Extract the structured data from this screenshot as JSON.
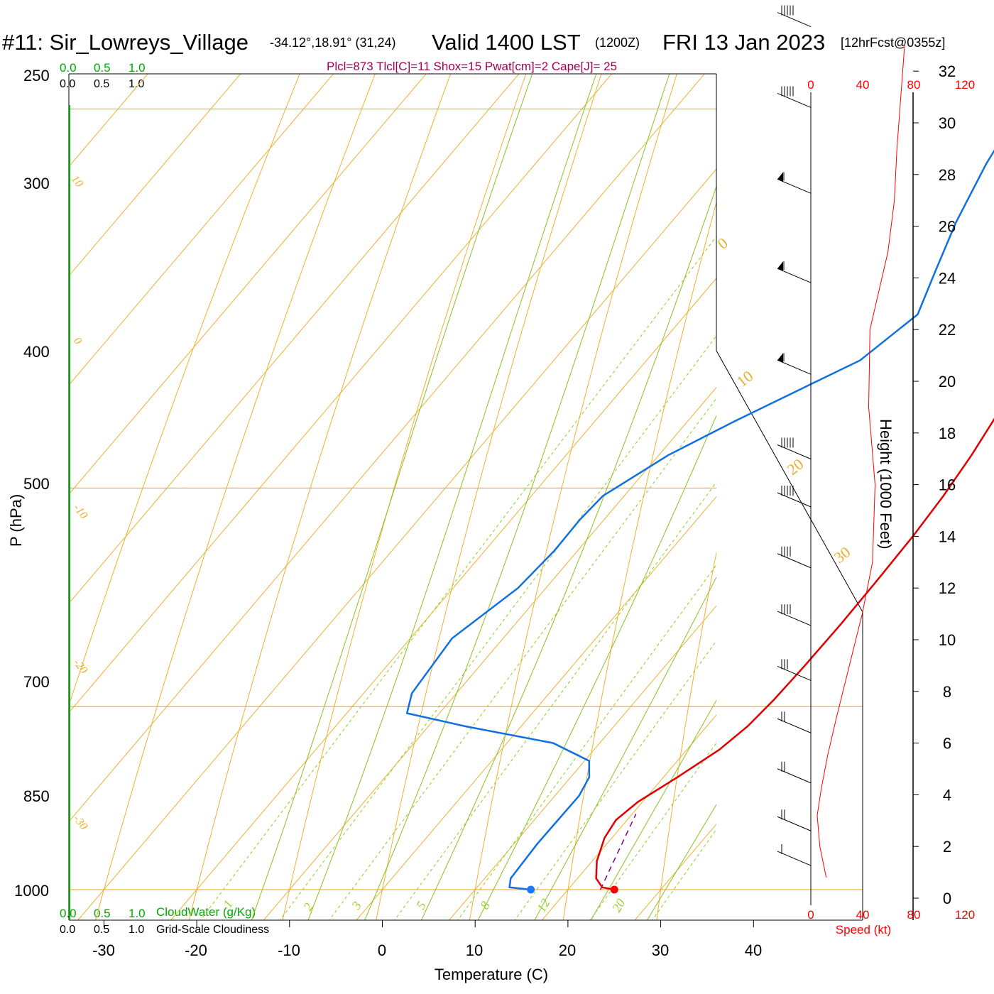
{
  "header": {
    "station": "#11: Sir_Lowreys_Village",
    "coords": "-34.12°,18.91° (31,24)",
    "valid": "Valid 1400 LST",
    "utc": "(1200Z)",
    "date": "FRI 13 Jan 2023",
    "forecast": "[12hrFcst@0355z]"
  },
  "indices": "Plcl=873 Tlcl[C]=11 Shox=15 Pwat[cm]=2 Cape[J]= 25",
  "colors": {
    "temperature": "#e00000",
    "dewpoint": "#1070e0",
    "isobar": "#f0a000",
    "isotherm": "#f0b030",
    "mixing_ratio": "#90cc20",
    "moist_adiabat": "#8ac020",
    "cloud_axis": "#00aa00",
    "speed": "#ff0000",
    "parcel": "#800080"
  },
  "chart_data": {
    "type": "line",
    "xlabel": "Temperature (C)",
    "ylabel": "P (hPa)",
    "x_ticks": [
      "-30",
      "-20",
      "-10",
      "0",
      "10",
      "20",
      "30",
      "40"
    ],
    "y_ticks": [
      "250",
      "300",
      "400",
      "500",
      "700",
      "850",
      "1000"
    ],
    "height_label": "Height (1000 Feet)",
    "height_ticks": [
      "0",
      "2",
      "4",
      "6",
      "8",
      "10",
      "12",
      "14",
      "16",
      "18",
      "20",
      "22",
      "24",
      "26",
      "28",
      "30",
      "32"
    ],
    "speed_ticks": [
      "0",
      "40",
      "80",
      "120"
    ],
    "speed_label": "Speed (kt)",
    "cloud_water_label": "CloudWater (g/Kg)",
    "cloudiness_label": "Grid-Scale Cloudiness",
    "cloud_ticks": [
      "0.0",
      "0.5",
      "1.0"
    ],
    "dry_adiabat_labels": [
      "10",
      "0",
      "-10",
      "-20",
      "-30"
    ],
    "isotherm_labels": [
      "0",
      "10",
      "20",
      "30"
    ],
    "mixing_ratio_labels": [
      "1",
      "2",
      "3",
      "5",
      "8",
      "12",
      "20"
    ],
    "series": [
      {
        "name": "temperature",
        "points": [
          [
            25.0,
            1000
          ],
          [
            23.5,
            998
          ],
          [
            22,
            990
          ],
          [
            20.5,
            975
          ],
          [
            19.2,
            955
          ],
          [
            18.8,
            940
          ],
          [
            19.5,
            925
          ],
          [
            21.5,
            905
          ],
          [
            23.5,
            883
          ],
          [
            24.4,
            865
          ],
          [
            24.8,
            845
          ],
          [
            25,
            820
          ],
          [
            25.1,
            790
          ],
          [
            25,
            760
          ],
          [
            24.8,
            730
          ],
          [
            24.4,
            705
          ],
          [
            23.7,
            680
          ],
          [
            22.5,
            650
          ],
          [
            20.9,
            620
          ],
          [
            19.2,
            595
          ],
          [
            17.4,
            575
          ],
          [
            15.5,
            550
          ],
          [
            13.5,
            520
          ],
          [
            11.8,
            500
          ],
          [
            9.2,
            470
          ],
          [
            6.3,
            440
          ],
          [
            3.4,
            410
          ],
          [
            0.7,
            380
          ],
          [
            -2.2,
            350
          ],
          [
            -4.9,
            325
          ],
          [
            -7.8,
            300
          ],
          [
            -10.1,
            285
          ],
          [
            -12.1,
            273
          ]
        ]
      },
      {
        "name": "dewpoint",
        "points": [
          [
            16.0,
            1000
          ],
          [
            13.5,
            998
          ],
          [
            12.8,
            990
          ],
          [
            12.5,
            960
          ],
          [
            12.6,
            920
          ],
          [
            12,
            905
          ],
          [
            10.5,
            892
          ],
          [
            5,
            878
          ],
          [
            -6,
            865
          ],
          [
            -13.5,
            855
          ],
          [
            -14.8,
            840
          ],
          [
            -15.5,
            800
          ],
          [
            -13,
            765
          ],
          [
            -12.5,
            740
          ],
          [
            -12.6,
            720
          ],
          [
            -12.3,
            705
          ],
          [
            -9,
            680
          ],
          [
            -5,
            660
          ],
          [
            -0.5,
            640
          ],
          [
            3,
            625
          ],
          [
            5,
            600
          ],
          [
            3,
            578
          ],
          [
            0.7,
            553
          ],
          [
            -1.4,
            525
          ],
          [
            -2.8,
            500
          ],
          [
            -4.1,
            480
          ],
          [
            -6.6,
            460
          ],
          [
            -8.1,
            435
          ],
          [
            -14.2,
            398
          ],
          [
            -18.1,
            378
          ],
          [
            -20.1,
            364
          ],
          [
            -23.4,
            348
          ],
          [
            -25.6,
            336
          ],
          [
            -26.9,
            324
          ],
          [
            -27.5,
            312
          ],
          [
            -27.3,
            300
          ],
          [
            -26.7,
            290
          ],
          [
            -26.1,
            282
          ],
          [
            -25.3,
            273
          ]
        ]
      },
      {
        "name": "parcel",
        "points": [
          [
            23.5,
            1000
          ],
          [
            20.4,
            935
          ]
        ]
      }
    ],
    "surface_points": {
      "temperature": 25.0,
      "dewpoint": 16.0
    },
    "wind_profile": [
      {
        "ft": 0.8,
        "kt": 12
      },
      {
        "ft": 2.0,
        "kt": 7
      },
      {
        "ft": 3.2,
        "kt": 5
      },
      {
        "ft": 4.2,
        "kt": 8
      },
      {
        "ft": 5.5,
        "kt": 13
      },
      {
        "ft": 7.0,
        "kt": 20
      },
      {
        "ft": 9.0,
        "kt": 30
      },
      {
        "ft": 11.0,
        "kt": 40
      },
      {
        "ft": 13.0,
        "kt": 48
      },
      {
        "ft": 16.0,
        "kt": 50
      },
      {
        "ft": 19.0,
        "kt": 45
      },
      {
        "ft": 22.0,
        "kt": 46
      },
      {
        "ft": 25.0,
        "kt": 60
      },
      {
        "ft": 27.0,
        "kt": 65
      },
      {
        "ft": 29.0,
        "kt": 67
      },
      {
        "ft": 31.0,
        "kt": 70
      },
      {
        "ft": 33.0,
        "kt": 73
      }
    ],
    "barbs": [
      {
        "p": 260,
        "barbs": 2
      },
      {
        "p": 280,
        "barbs": 2
      },
      {
        "p": 300,
        "barbs": 3
      },
      {
        "p": 320,
        "barbs": 1
      },
      {
        "p": 340,
        "barbs": 1
      },
      {
        "p": 365,
        "barbs": 1
      },
      {
        "p": 395,
        "barbs": 1
      },
      {
        "p": 430,
        "barbs": 5
      },
      {
        "p": 470,
        "barbs": 5
      },
      {
        "p": 505,
        "barbs": 5
      },
      {
        "p": 545,
        "barbs": 1
      },
      {
        "p": 590,
        "barbs": 1
      },
      {
        "p": 640,
        "barbs": 1
      },
      {
        "p": 690,
        "barbs": 5
      },
      {
        "p": 720,
        "barbs": 5
      },
      {
        "p": 760,
        "barbs": 4
      },
      {
        "p": 800,
        "barbs": 4
      },
      {
        "p": 840,
        "barbs": 3
      },
      {
        "p": 880,
        "barbs": 2
      },
      {
        "p": 920,
        "barbs": 2
      },
      {
        "p": 960,
        "barbs": 2
      },
      {
        "p": 990,
        "barbs": 1
      }
    ]
  }
}
